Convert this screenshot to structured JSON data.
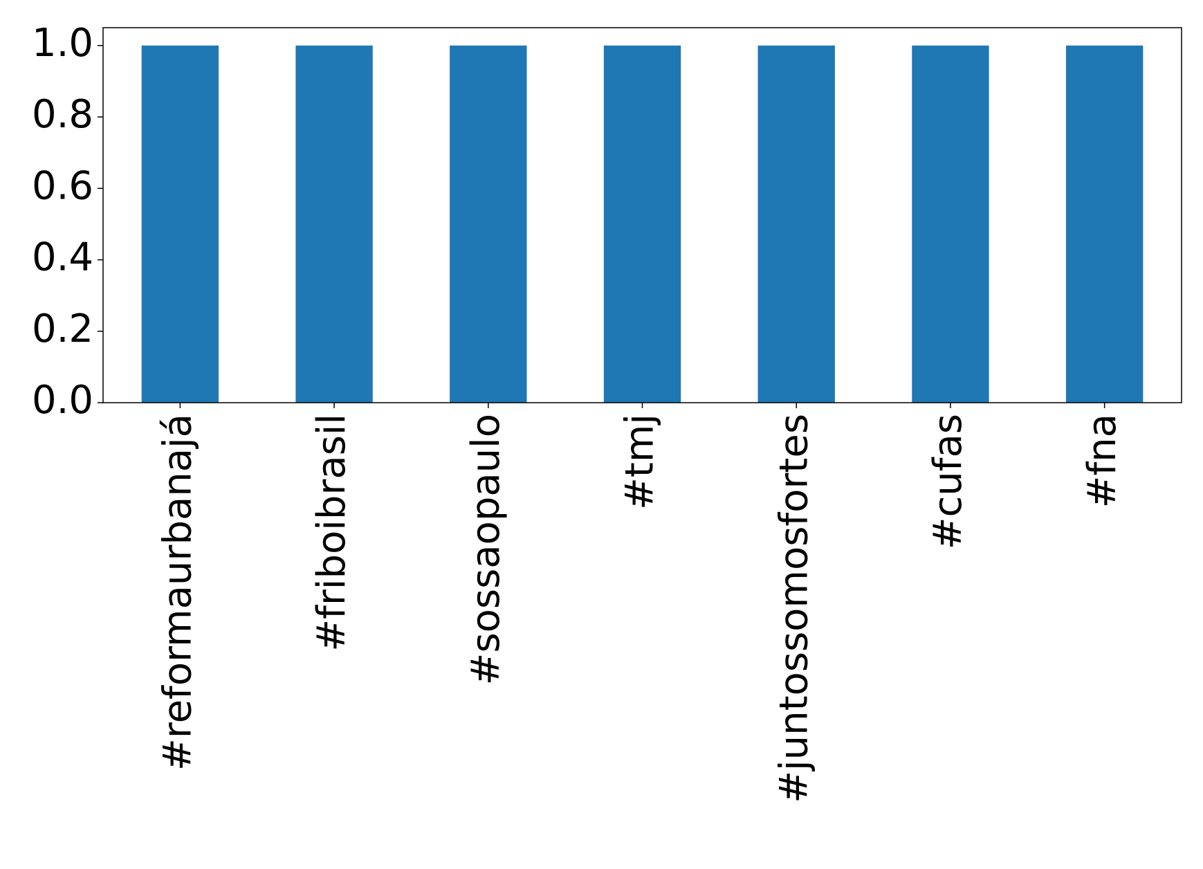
{
  "chart_data": {
    "type": "bar",
    "categories": [
      "#reformaurbanajá",
      "#friboibrasil",
      "#sossaopaulo",
      "#tmj",
      "#juntossomosfortes",
      "#cufas",
      "#fna"
    ],
    "values": [
      1,
      1,
      1,
      1,
      1,
      1,
      1
    ],
    "color": "#1f77b4",
    "ylim": [
      0,
      1.05
    ],
    "yticks": [
      {
        "value": 0,
        "label": "0.0"
      },
      0.2,
      0.4,
      0.6,
      0.8,
      {
        "value": 1,
        "label": "1.0"
      }
    ],
    "grid": false
  }
}
